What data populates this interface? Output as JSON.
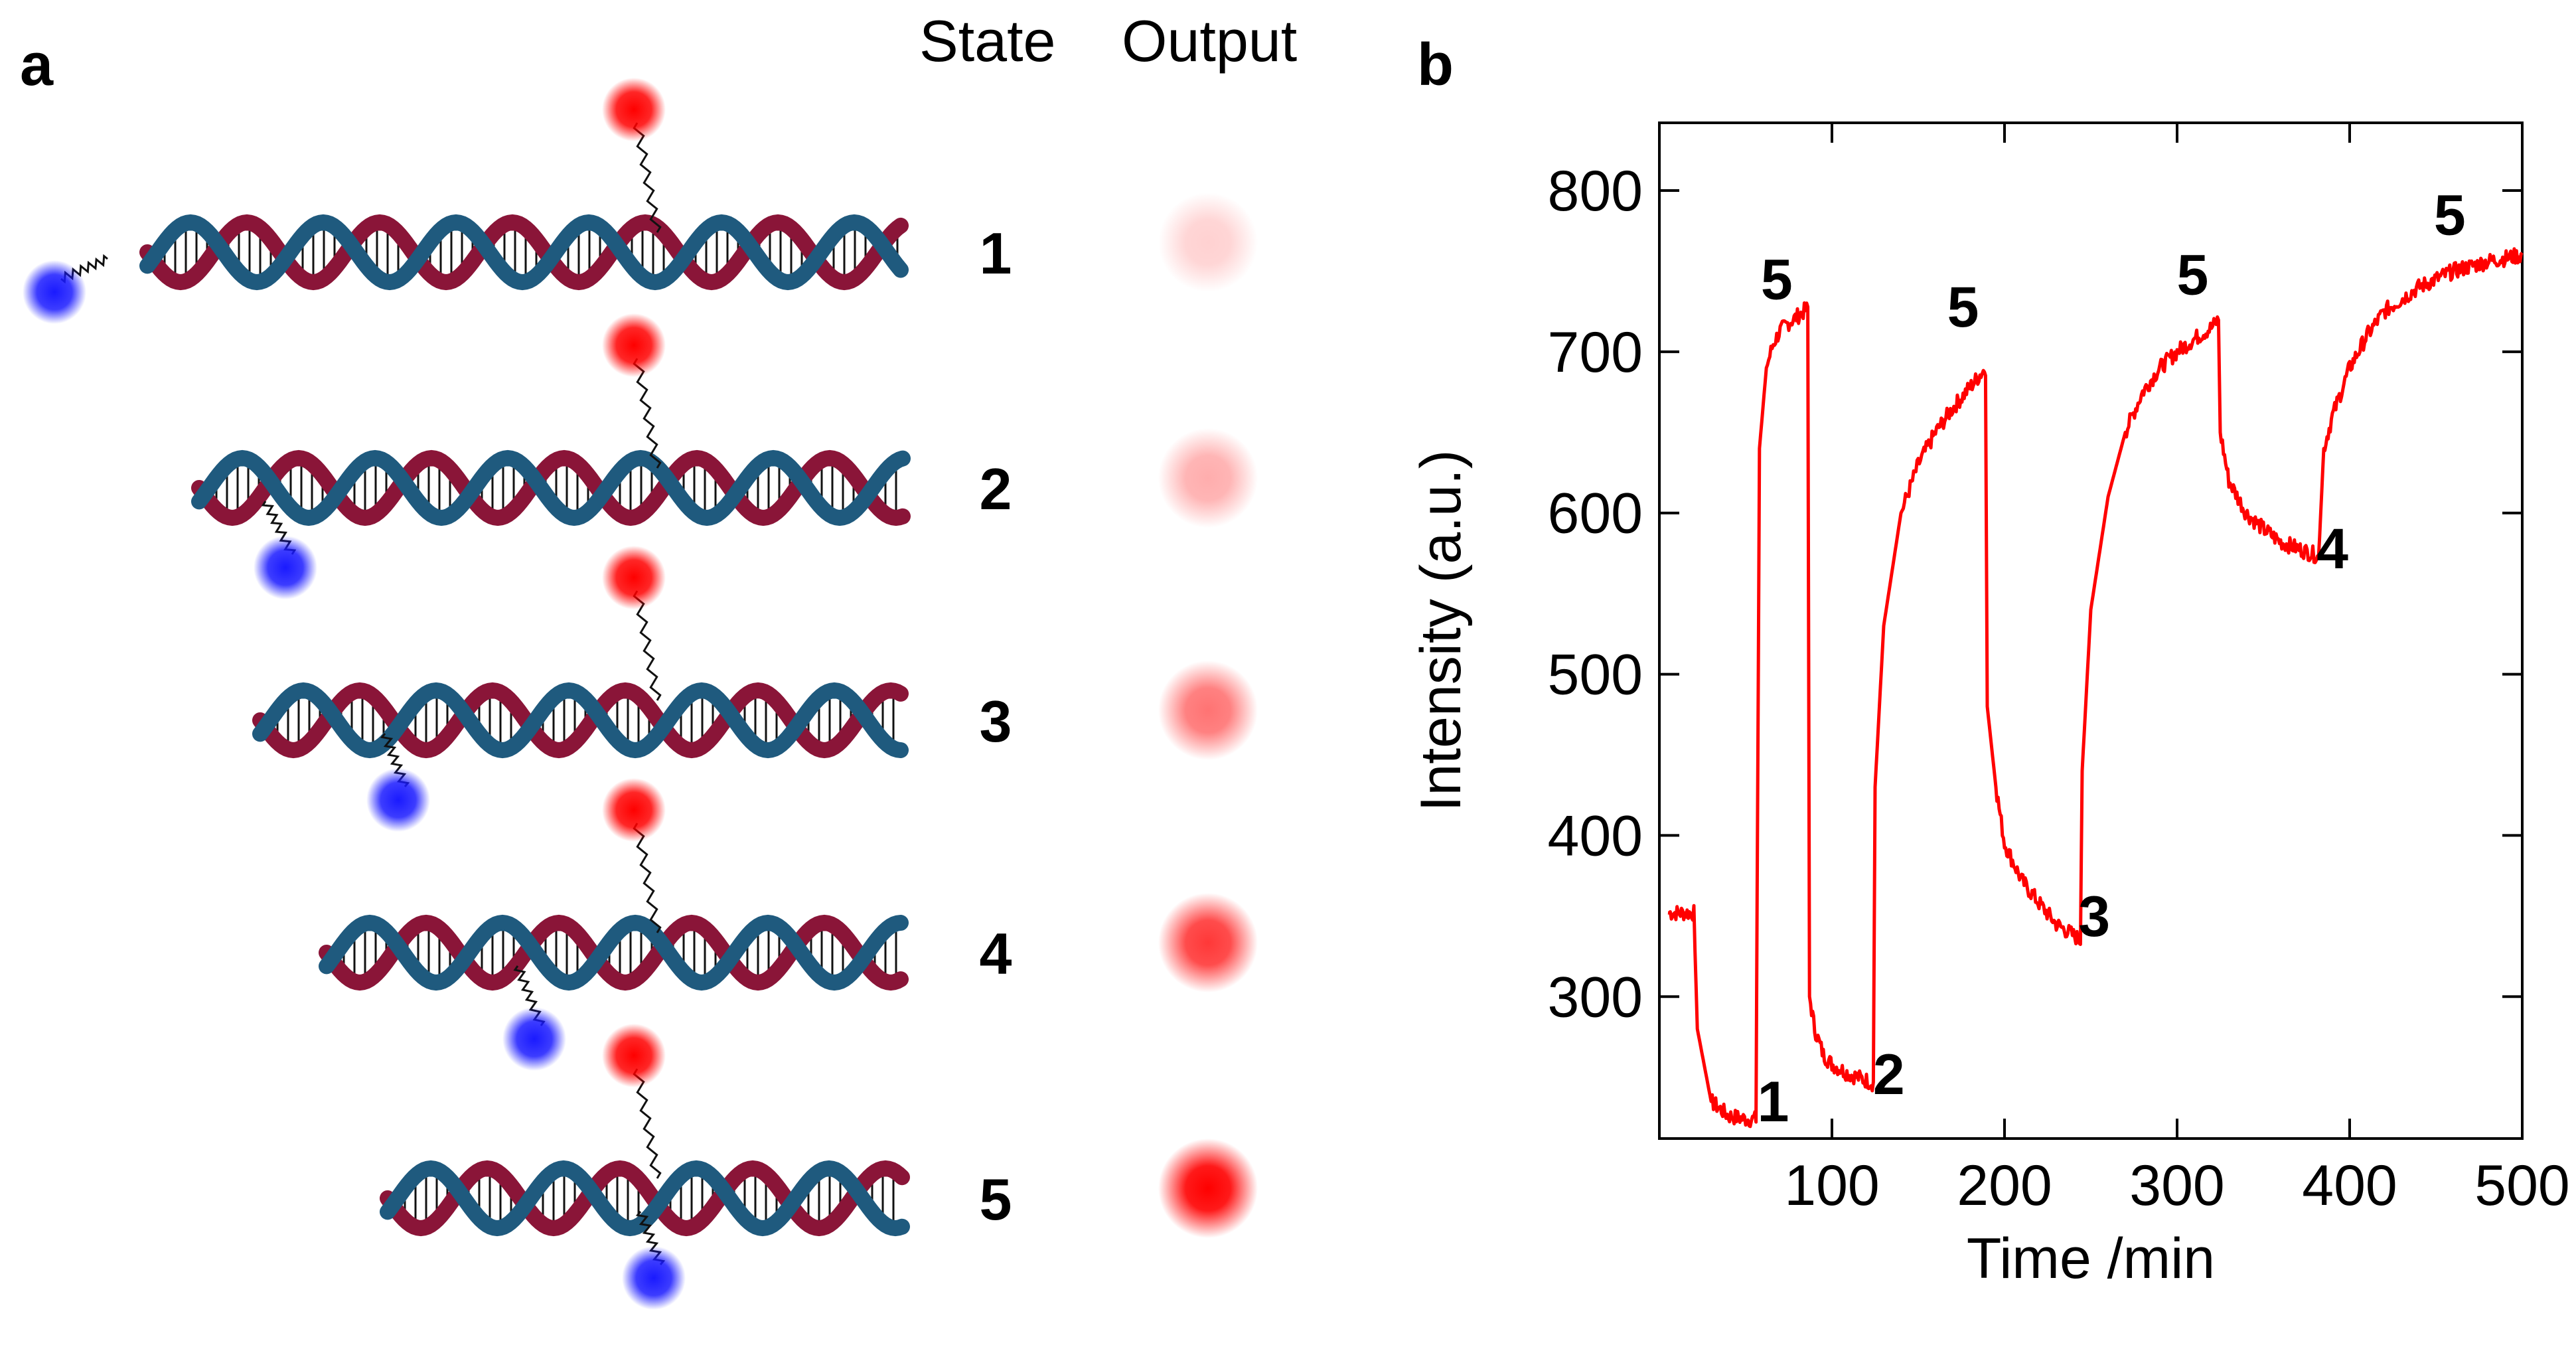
{
  "panel_a": {
    "letter": "a",
    "header_state": "State",
    "header_output": "Output",
    "states": [
      {
        "label": "1",
        "output_level": 0.18,
        "strand_start": 222,
        "probe_at": 990,
        "quencher": "tail"
      },
      {
        "label": "2",
        "output_level": 0.32,
        "strand_start": 300,
        "probe_at": 990,
        "quencher": "below-left"
      },
      {
        "label": "3",
        "output_level": 0.55,
        "strand_start": 392,
        "probe_at": 990,
        "quencher": "below"
      },
      {
        "label": "4",
        "output_level": 0.78,
        "strand_start": 492,
        "probe_at": 990,
        "quencher": "below"
      },
      {
        "label": "5",
        "output_level": 1.0,
        "strand_start": 584,
        "probe_at": 990,
        "quencher": "below-center"
      }
    ],
    "colors": {
      "strand_a": "#8a1538",
      "strand_b": "#1f5a7e",
      "fluorophore": "#ff0000",
      "quencher": "#1a1aff"
    }
  },
  "panel_b": {
    "letter": "b"
  },
  "chart_data": {
    "type": "line",
    "title": "",
    "xlabel": "Time /min",
    "ylabel": "Intensity (a.u.)",
    "xlim": [
      0,
      500
    ],
    "ylim": [
      212,
      842
    ],
    "xticks": [
      100,
      200,
      300,
      400,
      500
    ],
    "yticks": [
      300,
      400,
      500,
      600,
      700,
      800
    ],
    "grid": false,
    "color": "#ff0000",
    "series": [
      {
        "x": [
          5,
          20,
          22,
          30,
          40,
          50,
          56,
          58,
          62,
          66,
          70,
          75,
          80,
          86,
          87,
          90,
          95,
          100,
          110,
          120,
          124,
          125,
          130,
          140,
          150,
          160,
          170,
          180,
          189,
          190,
          195,
          200,
          210,
          220,
          230,
          240,
          244,
          245,
          250,
          260,
          270,
          280,
          290,
          300,
          310,
          320,
          324,
          325,
          330,
          340,
          350,
          360,
          370,
          380,
          382,
          385,
          390,
          400,
          410,
          420,
          440,
          460,
          480,
          500
        ],
        "y": [
          352,
          352,
          280,
          235,
          226,
          224,
          224,
          640,
          690,
          705,
          713,
          718,
          722,
          727,
          300,
          280,
          264,
          258,
          252,
          248,
          246,
          430,
          530,
          600,
          630,
          650,
          665,
          678,
          690,
          480,
          430,
          395,
          372,
          358,
          345,
          338,
          335,
          440,
          540,
          610,
          650,
          675,
          690,
          700,
          708,
          715,
          720,
          650,
          620,
          600,
          590,
          582,
          578,
          574,
          572,
          640,
          660,
          690,
          710,
          725,
          740,
          750,
          756,
          760
        ]
      }
    ],
    "annotations": [
      {
        "text": "1",
        "x": 66,
        "y": 235
      },
      {
        "text": "5",
        "x": 68,
        "y": 745
      },
      {
        "text": "2",
        "x": 133,
        "y": 252
      },
      {
        "text": "5",
        "x": 176,
        "y": 728
      },
      {
        "text": "3",
        "x": 252,
        "y": 350
      },
      {
        "text": "5",
        "x": 309,
        "y": 748
      },
      {
        "text": "4",
        "x": 390,
        "y": 578
      },
      {
        "text": "5",
        "x": 458,
        "y": 785
      }
    ]
  }
}
